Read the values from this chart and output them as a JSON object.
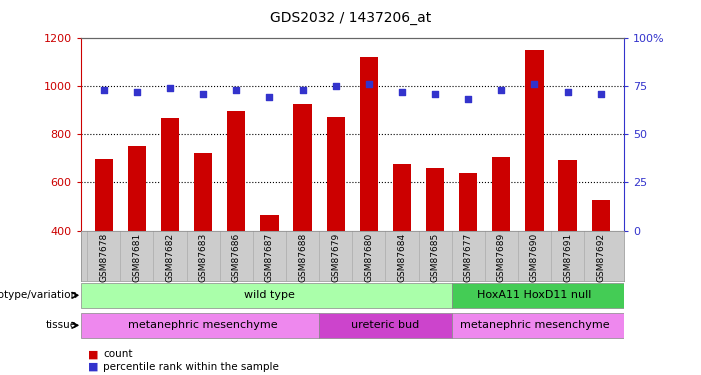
{
  "title": "GDS2032 / 1437206_at",
  "samples": [
    "GSM87678",
    "GSM87681",
    "GSM87682",
    "GSM87683",
    "GSM87686",
    "GSM87687",
    "GSM87688",
    "GSM87679",
    "GSM87680",
    "GSM87684",
    "GSM87685",
    "GSM87677",
    "GSM87689",
    "GSM87690",
    "GSM87691",
    "GSM87692"
  ],
  "counts": [
    695,
    750,
    865,
    720,
    895,
    465,
    925,
    870,
    1120,
    678,
    660,
    640,
    705,
    1150,
    693,
    525
  ],
  "percentiles": [
    73,
    72,
    74,
    71,
    73,
    69,
    73,
    75,
    76,
    72,
    71,
    68,
    73,
    76,
    72,
    71
  ],
  "ylim_left": [
    400,
    1200
  ],
  "ylim_right": [
    0,
    100
  ],
  "yticks_left": [
    400,
    600,
    800,
    1000,
    1200
  ],
  "yticks_right": [
    0,
    25,
    50,
    75,
    100
  ],
  "ytick_labels_right": [
    "0",
    "25",
    "50",
    "75",
    "100%"
  ],
  "bar_color": "#cc0000",
  "dot_color": "#3333cc",
  "bg_color": "#ffffff",
  "tick_bg": "#cccccc",
  "genotype_groups": [
    {
      "label": "wild type",
      "start": 0,
      "end": 11,
      "color": "#aaffaa"
    },
    {
      "label": "HoxA11 HoxD11 null",
      "start": 11,
      "end": 16,
      "color": "#44cc55"
    }
  ],
  "tissue_groups": [
    {
      "label": "metanephric mesenchyme",
      "start": 0,
      "end": 7,
      "color": "#ee88ee"
    },
    {
      "label": "ureteric bud",
      "start": 7,
      "end": 11,
      "color": "#cc44cc"
    },
    {
      "label": "metanephric mesenchyme",
      "start": 11,
      "end": 16,
      "color": "#ee88ee"
    }
  ],
  "left_axis_color": "#cc0000",
  "right_axis_color": "#3333cc",
  "grid_yticks": [
    600,
    800,
    1000
  ]
}
